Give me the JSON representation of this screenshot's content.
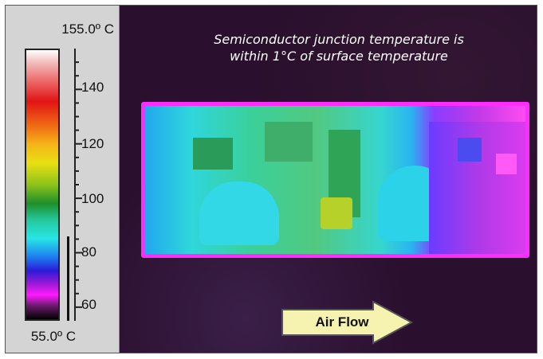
{
  "scale": {
    "max_label": "155.0º C",
    "min_label": "55.0º C",
    "ticks": [
      "140",
      "120",
      "100",
      "80",
      "60"
    ]
  },
  "caption": {
    "line1": "Semiconductor junction temperature is",
    "line2": "within 1°C of surface temperature"
  },
  "airflow": {
    "label": "Air Flow"
  },
  "colors": {
    "panel": "#d4d4d4",
    "background": "#2a0f2e",
    "board_edge": "#ff2cff",
    "arrow_fill": "#f6f3b0"
  }
}
